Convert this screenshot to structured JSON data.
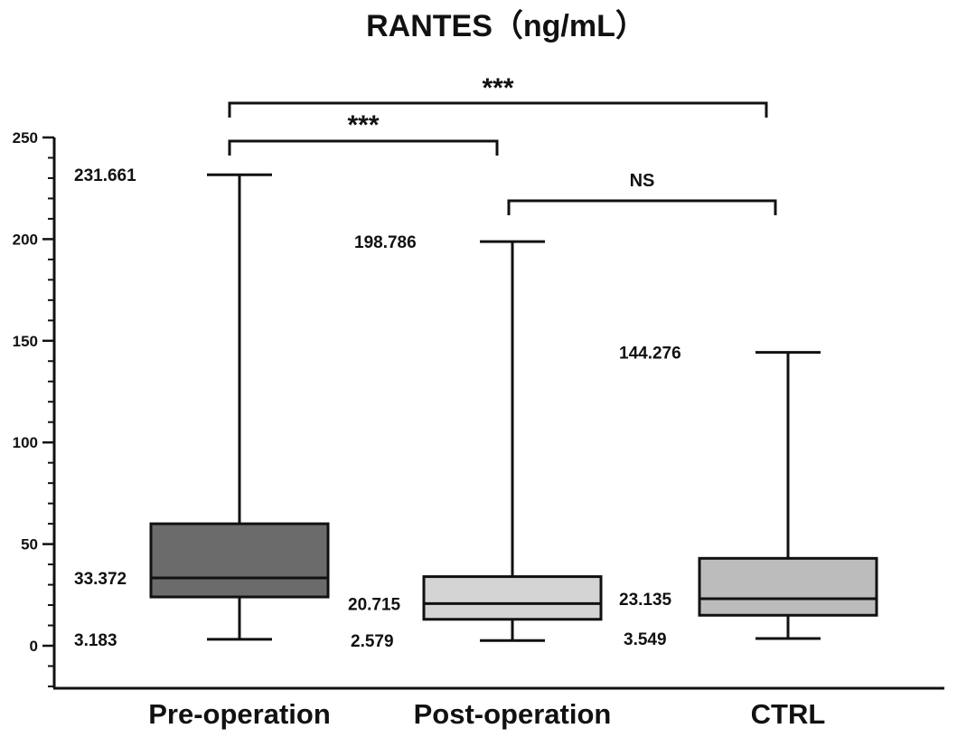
{
  "chart_data": {
    "type": "box",
    "title": "RANTES（ng/mL）",
    "xlabel": "",
    "ylabel": "",
    "ylim": [
      -20,
      250
    ],
    "yticks": [
      0,
      50,
      100,
      150,
      200,
      250
    ],
    "grid": false,
    "categories": [
      "Pre-operation",
      "Post-operation",
      "CTRL"
    ],
    "boxes": [
      {
        "category": "Pre-operation",
        "min": 3.183,
        "q1": 24,
        "median": 33.372,
        "q3": 60,
        "max": 231.661,
        "color": "#6b6b6b",
        "labels": {
          "max": "231.661",
          "median": "33.372",
          "min": "3.183"
        }
      },
      {
        "category": "Post-operation",
        "min": 2.579,
        "q1": 13,
        "median": 20.715,
        "q3": 34,
        "max": 198.786,
        "color": "#d4d4d4",
        "labels": {
          "max": "198.786",
          "median": "20.715",
          "min": "2.579"
        }
      },
      {
        "category": "CTRL",
        "min": 3.549,
        "q1": 15,
        "median": 23.135,
        "q3": 43,
        "max": 144.276,
        "color": "#bcbcbc",
        "labels": {
          "max": "144.276",
          "median": "23.135",
          "min": "3.549"
        }
      }
    ],
    "significance": [
      {
        "from": "Pre-operation",
        "to": "CTRL",
        "label": "***"
      },
      {
        "from": "Pre-operation",
        "to": "Post-operation",
        "label": "***"
      },
      {
        "from": "Post-operation",
        "to": "CTRL",
        "label": "NS"
      }
    ]
  }
}
